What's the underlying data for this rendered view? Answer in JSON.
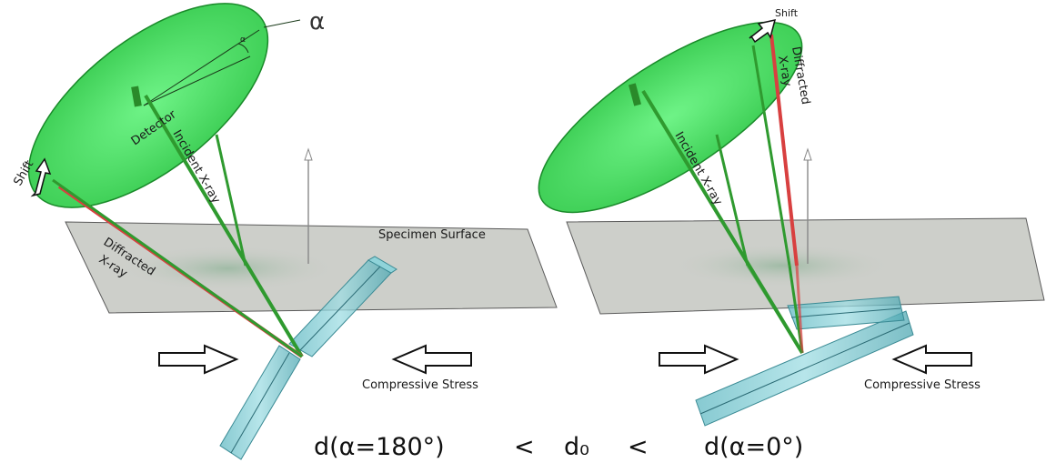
{
  "left_panel": {
    "labels": {
      "alpha": "α",
      "alpha_small": "α",
      "detector": "Detector",
      "shift": "Shift",
      "incident": "Incident X-ray",
      "diffracted_line1": "Diffracted",
      "diffracted_line2": "X-ray",
      "surface": "Specimen Surface",
      "stress": "Compressive Stress"
    }
  },
  "right_panel": {
    "labels": {
      "shift": "Shift",
      "incident": "Incident X-ray",
      "diffracted_line1": "Diffracted",
      "diffracted_line2": "X-ray",
      "stress": "Compressive Stress"
    }
  },
  "equation": {
    "left": "d(α=180°)",
    "lt1": "<",
    "middle": "d₀",
    "lt2": "<",
    "right": "d(α=0°)"
  },
  "colors": {
    "detector_fill": "#2fd64a",
    "detector_stroke": "#1a8a2a",
    "incident_beam": "#2f9a2f",
    "diffracted_beam": "#d84040",
    "surface_fill": "#c9cbc6",
    "crystal_fill": "#6fc0c8"
  }
}
